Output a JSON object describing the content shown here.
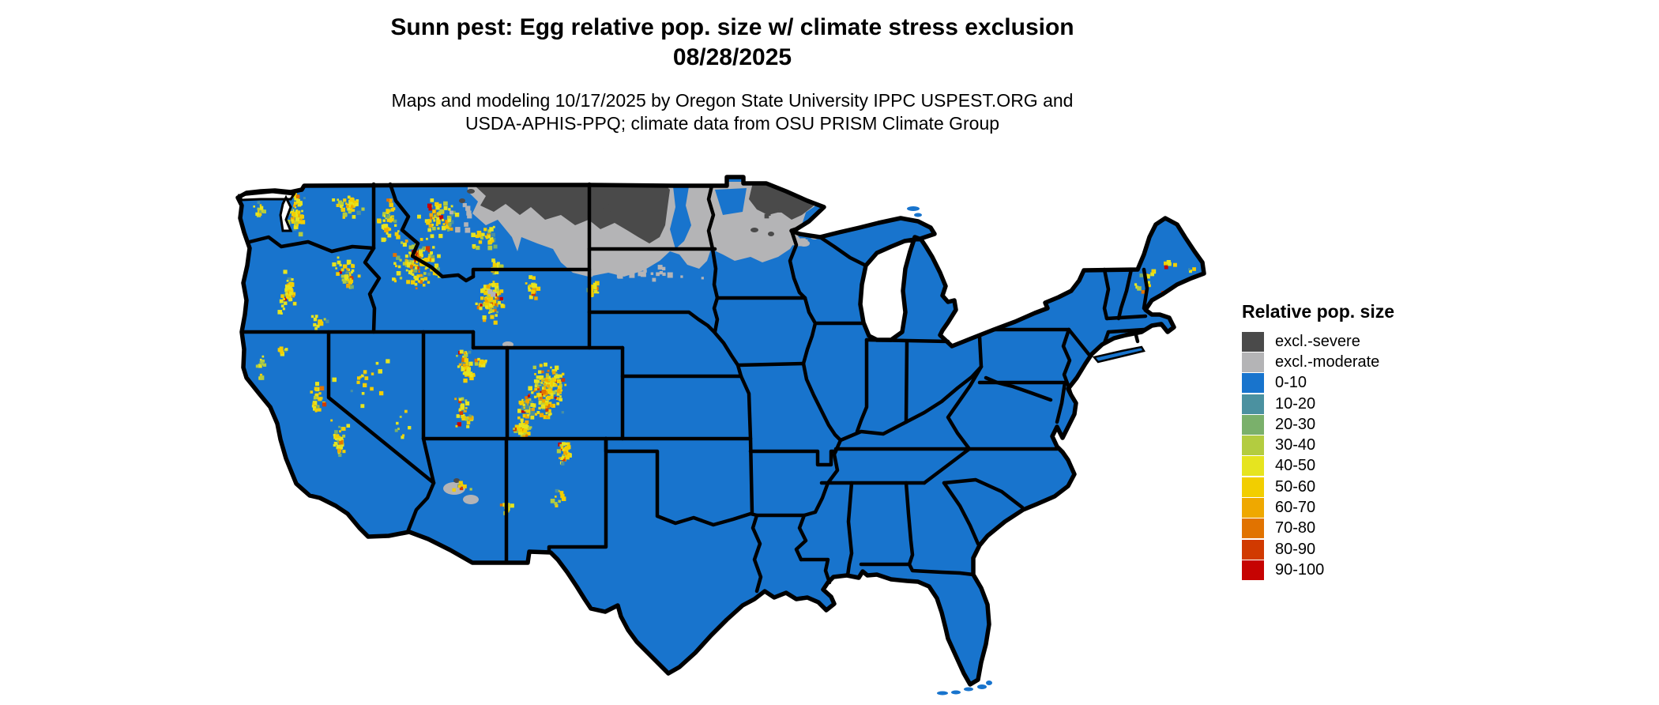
{
  "header": {
    "title_line1": "Sunn pest: Egg relative pop. size w/ climate stress exclusion",
    "title_line2": "08/28/2025",
    "credit_line1": "Maps and modeling 10/17/2025 by Oregon State University IPPC USPEST.ORG and",
    "credit_line2": "USDA-APHIS-PPQ; climate data from OSU PRISM Climate Group"
  },
  "legend": {
    "title": "Relative pop. size",
    "items": [
      {
        "label": "excl.-severe",
        "color": "#4a4a4a"
      },
      {
        "label": "excl.-moderate",
        "color": "#b4b4b6"
      },
      {
        "label": "0-10",
        "color": "#1874cd"
      },
      {
        "label": "10-20",
        "color": "#4b91a0"
      },
      {
        "label": "20-30",
        "color": "#7ab06b"
      },
      {
        "label": "30-40",
        "color": "#b3cc40"
      },
      {
        "label": "40-50",
        "color": "#e6e41f"
      },
      {
        "label": "50-60",
        "color": "#f2ce00"
      },
      {
        "label": "60-70",
        "color": "#efa800"
      },
      {
        "label": "70-80",
        "color": "#e17300"
      },
      {
        "label": "80-90",
        "color": "#d13a00"
      },
      {
        "label": "90-100",
        "color": "#c60302"
      }
    ]
  },
  "map": {
    "land_color": "#1874cd",
    "border_color": "#000000",
    "water_color": "#ffffff",
    "excl_severe_color": "#4a4a4a",
    "excl_moderate_color": "#b4b4b6"
  },
  "chart_data": {
    "type": "choropleth_map",
    "region": "Contiguous United States",
    "title": "Sunn pest: Egg relative pop. size w/ climate stress exclusion",
    "date_shown": "08/28/2025",
    "model_run_date": "10/17/2025",
    "variable": "Egg relative population size (%) with climate stress exclusion",
    "classes": [
      "excl.-severe",
      "excl.-moderate",
      "0-10",
      "10-20",
      "20-30",
      "30-40",
      "40-50",
      "50-60",
      "60-70",
      "70-80",
      "80-90",
      "90-100"
    ],
    "patterns": [
      "Baseline 0-10 (blue) across nearly all of the contiguous US",
      "excl.-severe (dark gray) band across northeastern Montana, most of North Dakota and northern Minnesota",
      "excl.-moderate (light gray) fringe around the severe zone reaching northern South Dakota, the Red River Valley, central Minnesota, spots in northern Wisconsin and a small patch in northern Arizona",
      "Speckled elevated values 30-100 (yellow to red) along western mountain ranges: WA/OR Cascades, Olympics, NE Washington, Idaho panhandle, central Idaho and western Montana Rockies, Blue Mountains, Sierra Nevada, Yellowstone and Wind River ranges, Bighorns, Black Hills, Wasatch and Uinta ranges, Utah plateaus, Colorado Rockies, Sangre de Cristo into New Mexico",
      "Tiny speckles in northern New England (White Mountains, Maine) and north of Lake Superior"
    ],
    "legend_position": "right"
  }
}
